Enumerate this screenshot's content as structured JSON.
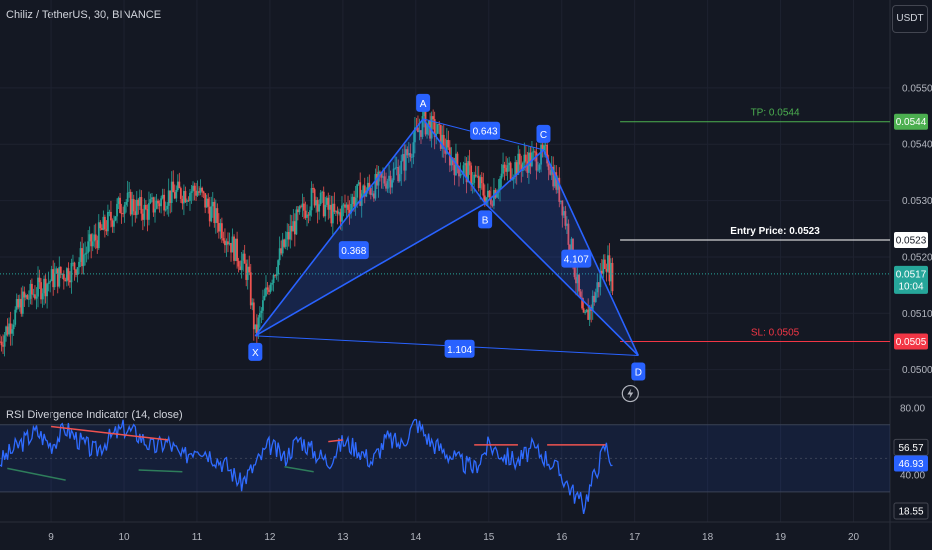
{
  "header": {
    "title": "Chiliz / TetherUS, 30, BINANCE",
    "currency_button": "USDT"
  },
  "colors": {
    "background": "#141823",
    "up": "#26a69a",
    "down": "#ef5350",
    "pattern": "#2962ff",
    "pattern_fill": "rgba(41,98,255,0.18)",
    "tp": "#4caf50",
    "sl": "#f23645",
    "entry": "#ffffff",
    "rsi_line": "#2f6bff",
    "rsi_band": "rgba(41,98,255,0.10)"
  },
  "chart_data": [
    {
      "type": "candlestick",
      "x_tick_labels": [
        "9",
        "10",
        "11",
        "12",
        "13",
        "14",
        "15",
        "16",
        "17",
        "18",
        "19",
        "20"
      ],
      "x_range": [
        8.3,
        20.5
      ],
      "y_range": [
        0.04955,
        0.05585
      ],
      "y_tick_labels": [
        "0.0550",
        "0.0540",
        "0.0530",
        "0.0520",
        "0.0510",
        "0.0500"
      ],
      "y_ticks": [
        0.055,
        0.054,
        0.053,
        0.052,
        0.051,
        0.05
      ],
      "price_anchors": [
        [
          8.3,
          0.0505
        ],
        [
          8.6,
          0.0512
        ],
        [
          9.0,
          0.0516
        ],
        [
          9.3,
          0.0518
        ],
        [
          9.6,
          0.0523
        ],
        [
          10.0,
          0.053
        ],
        [
          10.3,
          0.0528
        ],
        [
          10.6,
          0.0531
        ],
        [
          11.0,
          0.0532
        ],
        [
          11.4,
          0.0524
        ],
        [
          11.7,
          0.0517
        ],
        [
          11.8,
          0.0506
        ],
        [
          12.0,
          0.0516
        ],
        [
          12.3,
          0.0525
        ],
        [
          12.6,
          0.0531
        ],
        [
          12.9,
          0.0527
        ],
        [
          13.2,
          0.0531
        ],
        [
          13.5,
          0.0533
        ],
        [
          13.8,
          0.0536
        ],
        [
          14.1,
          0.0544
        ],
        [
          14.3,
          0.0542
        ],
        [
          14.5,
          0.0537
        ],
        [
          14.8,
          0.0534
        ],
        [
          15.0,
          0.053
        ],
        [
          15.2,
          0.0535
        ],
        [
          15.5,
          0.0537
        ],
        [
          15.8,
          0.0538
        ],
        [
          16.0,
          0.053
        ],
        [
          16.15,
          0.052
        ],
        [
          16.3,
          0.0508
        ],
        [
          16.45,
          0.0513
        ],
        [
          16.6,
          0.052
        ],
        [
          16.7,
          0.0516
        ]
      ],
      "pattern": {
        "points": [
          {
            "label": "X",
            "x": 11.8,
            "price": 0.0506
          },
          {
            "label": "A",
            "x": 14.1,
            "price": 0.05445
          },
          {
            "label": "B",
            "x": 14.95,
            "price": 0.05295
          },
          {
            "label": "C",
            "x": 15.75,
            "price": 0.0539
          },
          {
            "label": "D",
            "x": 17.05,
            "price": 0.05025
          }
        ],
        "ratio_labels": [
          {
            "text": "0.643",
            "x": 14.95,
            "price": 0.05424
          },
          {
            "text": "0.368",
            "x": 13.15,
            "price": 0.05212
          },
          {
            "text": "4.107",
            "x": 16.2,
            "price": 0.05197
          },
          {
            "text": "1.104",
            "x": 14.6,
            "price": 0.05037
          }
        ]
      },
      "levels": {
        "tp": {
          "label": "TP: 0.0544",
          "price": 0.0544,
          "axis_label": "0.0544"
        },
        "entry": {
          "label": "Entry Price: 0.0523",
          "price": 0.0523,
          "axis_label": "0.0523"
        },
        "sl": {
          "label": "SL: 0.0505",
          "price": 0.0505,
          "axis_label": "0.0505"
        },
        "last": {
          "price": 0.0517,
          "axis_label": "0.0517",
          "countdown": "10:04"
        }
      }
    },
    {
      "type": "line",
      "title": "RSI Divergence Indicator (14, close)",
      "y_range": [
        12,
        86
      ],
      "y_tick_labels": [
        "80.00",
        "40.00"
      ],
      "y_ticks": [
        80,
        40
      ],
      "band": [
        30,
        70
      ],
      "band_mid": 50,
      "extra_axis_labels": [
        {
          "text": "56.57",
          "value": 56.57,
          "style": "plain"
        },
        {
          "text": "46.93",
          "value": 46.93,
          "style": "blue"
        },
        {
          "text": "18.55",
          "value": 18.55,
          "style": "plain"
        }
      ],
      "rsi_anchors": [
        [
          8.3,
          48
        ],
        [
          8.5,
          56
        ],
        [
          8.8,
          66
        ],
        [
          9.0,
          58
        ],
        [
          9.2,
          68
        ],
        [
          9.4,
          60
        ],
        [
          9.6,
          54
        ],
        [
          9.8,
          62
        ],
        [
          10.0,
          68
        ],
        [
          10.2,
          64
        ],
        [
          10.4,
          56
        ],
        [
          10.6,
          60
        ],
        [
          10.8,
          50
        ],
        [
          11.0,
          58
        ],
        [
          11.2,
          52
        ],
        [
          11.4,
          46
        ],
        [
          11.6,
          35
        ],
        [
          11.8,
          46
        ],
        [
          12.0,
          58
        ],
        [
          12.2,
          50
        ],
        [
          12.4,
          62
        ],
        [
          12.6,
          54
        ],
        [
          12.8,
          48
        ],
        [
          13.0,
          60
        ],
        [
          13.2,
          56
        ],
        [
          13.4,
          48
        ],
        [
          13.6,
          62
        ],
        [
          13.8,
          58
        ],
        [
          14.0,
          72
        ],
        [
          14.2,
          60
        ],
        [
          14.4,
          54
        ],
        [
          14.6,
          48
        ],
        [
          14.8,
          44
        ],
        [
          15.0,
          58
        ],
        [
          15.2,
          52
        ],
        [
          15.4,
          48
        ],
        [
          15.6,
          56
        ],
        [
          15.8,
          50
        ],
        [
          16.0,
          40
        ],
        [
          16.15,
          30
        ],
        [
          16.3,
          22
        ],
        [
          16.45,
          40
        ],
        [
          16.6,
          58
        ],
        [
          16.7,
          47
        ]
      ],
      "divergence_lines": [
        {
          "kind": "bearish",
          "from": [
            9.0,
            69
          ],
          "to": [
            10.6,
            61
          ]
        },
        {
          "kind": "bearish",
          "from": [
            12.8,
            60
          ],
          "to": [
            13.0,
            61
          ]
        },
        {
          "kind": "bearish",
          "from": [
            14.8,
            58
          ],
          "to": [
            15.4,
            58
          ]
        },
        {
          "kind": "bearish",
          "from": [
            15.8,
            58
          ],
          "to": [
            16.6,
            58
          ]
        },
        {
          "kind": "bullish",
          "from": [
            8.4,
            44
          ],
          "to": [
            9.2,
            37
          ]
        },
        {
          "kind": "bullish",
          "from": [
            10.2,
            43
          ],
          "to": [
            10.8,
            42
          ]
        },
        {
          "kind": "bullish",
          "from": [
            12.2,
            45
          ],
          "to": [
            12.6,
            42
          ]
        }
      ]
    }
  ],
  "icons": {
    "alert": "lightning-alert-icon"
  }
}
